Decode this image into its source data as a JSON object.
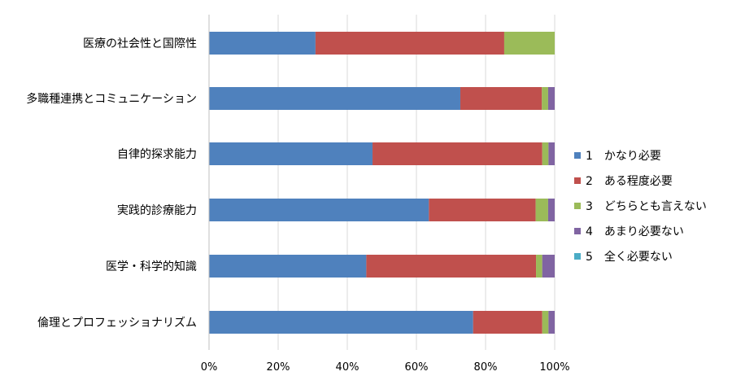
{
  "chart_data": {
    "type": "bar",
    "orientation": "horizontal",
    "stacked": true,
    "normalized_100_percent": true,
    "categories": [
      "医療の社会性と国際性",
      "多職種連携とコミュニケーション",
      "自律的探求能力",
      "実践的診療能力",
      "医学・科学的知識",
      "倫理とプロフェッショナリズム"
    ],
    "series": [
      {
        "name": "1　かなり必要",
        "color": "#4F81BD",
        "values": [
          30.8,
          72.7,
          47.3,
          63.6,
          45.5,
          76.4
        ]
      },
      {
        "name": "2　ある程度必要",
        "color": "#C0504D",
        "values": [
          54.6,
          23.6,
          49.1,
          30.9,
          49.1,
          20.0
        ]
      },
      {
        "name": "3　どちらとも言えない",
        "color": "#9BBB59",
        "values": [
          14.6,
          1.8,
          1.8,
          3.6,
          1.8,
          1.8
        ]
      },
      {
        "name": "4　あまり必要ない",
        "color": "#8064A2",
        "values": [
          0.0,
          1.9,
          1.8,
          1.9,
          3.6,
          1.8
        ]
      },
      {
        "name": "5　全く必要ない",
        "color": "#4BACC6",
        "values": [
          0.0,
          0.0,
          0.0,
          0.0,
          0.0,
          0.0
        ]
      }
    ],
    "x_tick_labels": [
      "0%",
      "20%",
      "40%",
      "60%",
      "80%",
      "100%"
    ],
    "xlim": [
      0,
      100
    ],
    "title": "",
    "xlabel": "",
    "ylabel": "",
    "grid": "vertical",
    "legend_position": "right"
  }
}
